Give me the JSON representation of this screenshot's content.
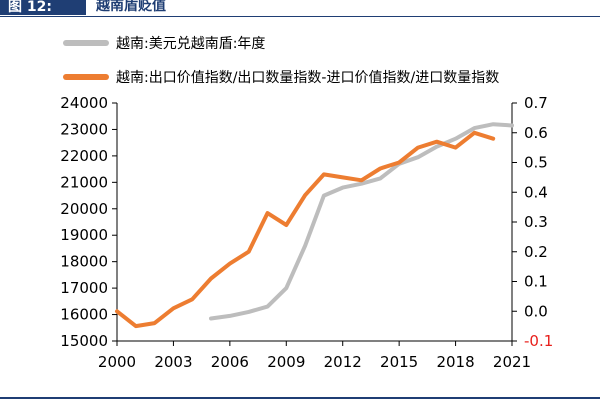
{
  "figure": {
    "number": "图 12:",
    "title": "越南盾贬值"
  },
  "colors": {
    "header": "#1f3e74",
    "series_gray": "#bdbdbd",
    "series_orange": "#ed7d31",
    "negative_tick": "#e8201c"
  },
  "chart_data": {
    "type": "line",
    "legend_placement": "top-left",
    "grid": false,
    "x_ticks": [
      "2000",
      "2003",
      "2006",
      "2009",
      "2012",
      "2015",
      "2018",
      "2021"
    ],
    "x_range": [
      2000,
      2021
    ],
    "y_left": {
      "range": [
        15000,
        24000
      ],
      "ticks": [
        "15000",
        "16000",
        "17000",
        "18000",
        "19000",
        "20000",
        "21000",
        "22000",
        "23000",
        "24000"
      ]
    },
    "y_right": {
      "range": [
        -0.1,
        0.7
      ],
      "ticks": [
        "-0.1",
        "0.0",
        "0.1",
        "0.2",
        "0.3",
        "0.4",
        "0.5",
        "0.6",
        "0.7"
      ]
    },
    "series": [
      {
        "name": "越南:美元兑越南盾:年度",
        "axis": "left",
        "color": "#bdbdbd",
        "x": [
          2005,
          2006,
          2007,
          2008,
          2009,
          2010,
          2011,
          2012,
          2013,
          2014,
          2015,
          2016,
          2017,
          2018,
          2019,
          2020,
          2021
        ],
        "values": [
          15850,
          15950,
          16100,
          16300,
          17000,
          18600,
          20500,
          20800,
          20950,
          21150,
          21700,
          21950,
          22350,
          22650,
          23050,
          23200,
          23150
        ]
      },
      {
        "name": "越南:出口价值指数/出口数量指数-进口价值指数/进口数量指数",
        "axis": "right",
        "color": "#ed7d31",
        "x": [
          2000,
          2001,
          2002,
          2003,
          2004,
          2005,
          2006,
          2007,
          2008,
          2009,
          2010,
          2011,
          2012,
          2013,
          2014,
          2015,
          2016,
          2017,
          2018,
          2019,
          2020
        ],
        "values": [
          0.0,
          -0.05,
          -0.04,
          0.01,
          0.04,
          0.11,
          0.16,
          0.2,
          0.33,
          0.29,
          0.39,
          0.46,
          0.45,
          0.44,
          0.48,
          0.5,
          0.55,
          0.57,
          0.55,
          0.6,
          0.58
        ]
      }
    ]
  }
}
